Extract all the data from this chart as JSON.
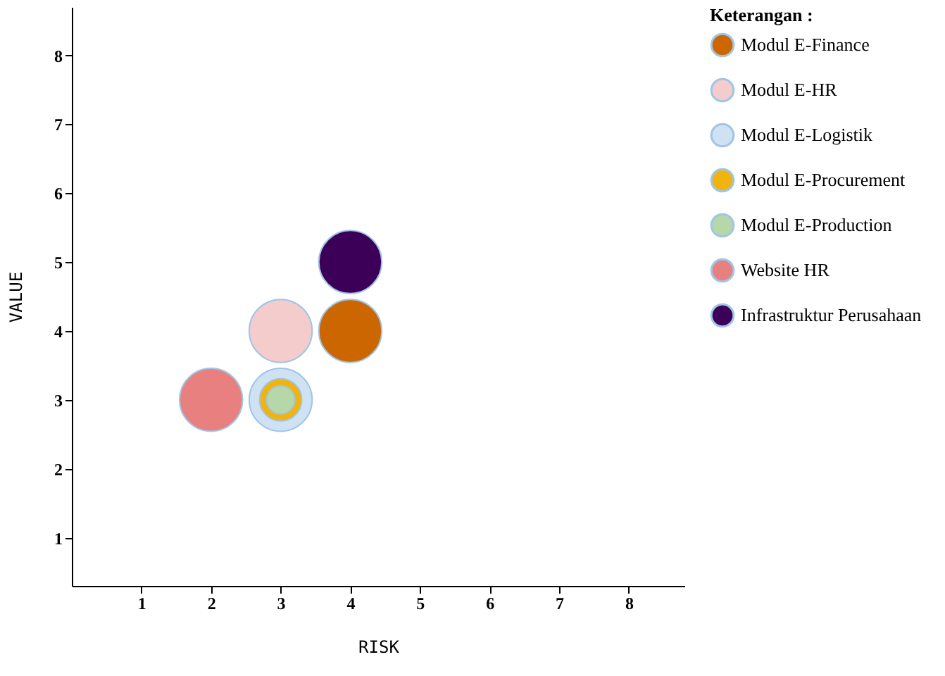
{
  "chart_data": {
    "type": "bubble",
    "xlabel": "RISK",
    "ylabel": "VALUE",
    "legend_title": "Keterangan :",
    "legend": "right",
    "xlim": [
      0,
      8.8
    ],
    "ylim": [
      0.3,
      8.7
    ],
    "xticks": [
      1,
      2,
      3,
      4,
      5,
      6,
      7,
      8
    ],
    "yticks": [
      1,
      2,
      3,
      4,
      5,
      6,
      7,
      8
    ],
    "grid": false,
    "series": [
      {
        "name": "Modul E-Finance",
        "color": "#cc6600",
        "x": [
          4
        ],
        "values": [
          4
        ],
        "sizes": [
          1
        ]
      },
      {
        "name": "Modul E-HR",
        "color": "#f4cccc",
        "x": [
          3
        ],
        "values": [
          4
        ],
        "sizes": [
          1
        ]
      },
      {
        "name": "Modul E-Logistik",
        "color": "#cfe2f3",
        "x": [
          3
        ],
        "values": [
          3
        ],
        "sizes": [
          1
        ]
      },
      {
        "name": "Modul E-Procurement",
        "color": "#f1b40f",
        "x": [
          3
        ],
        "values": [
          3
        ],
        "sizes": [
          0.45
        ]
      },
      {
        "name": "Modul E-Production",
        "color": "#b6d7a8",
        "x": [
          3
        ],
        "values": [
          3
        ],
        "sizes": [
          0.2
        ]
      },
      {
        "name": "Website HR",
        "color": "#e88080",
        "x": [
          2
        ],
        "values": [
          3
        ],
        "sizes": [
          1
        ]
      },
      {
        "name": "Infrastruktur Perusahaan",
        "color": "#3d0059",
        "x": [
          4
        ],
        "values": [
          5
        ],
        "sizes": [
          1
        ]
      }
    ]
  }
}
